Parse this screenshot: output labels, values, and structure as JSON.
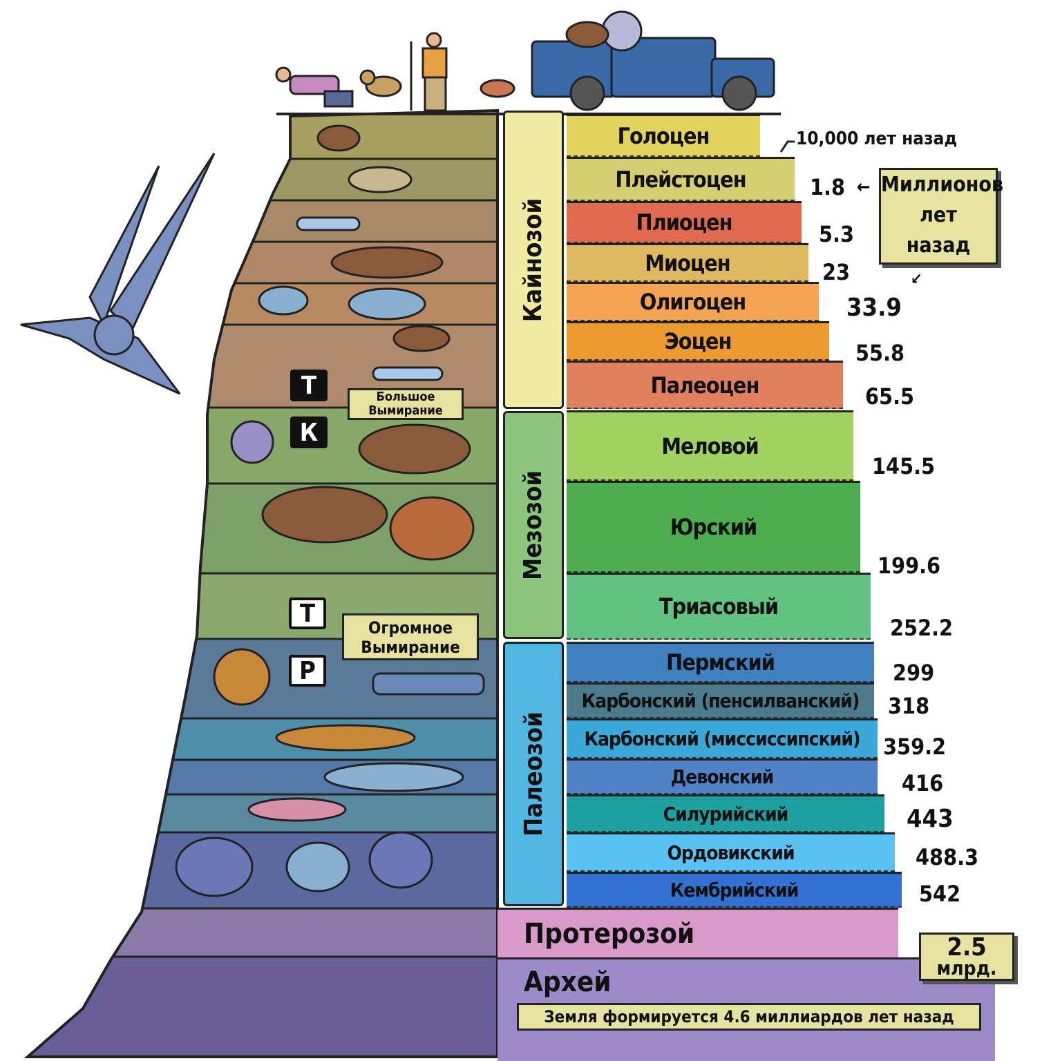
{
  "top_note": "10,000 лет назад",
  "unit_box": {
    "line1": "Миллионов",
    "line2": "лет",
    "line3": "назад"
  },
  "eras": [
    {
      "label": "Кайнозой",
      "color": "#f0eba0"
    },
    {
      "label": "Мезозой",
      "color": "#8cc67e"
    },
    {
      "label": "Палеозой",
      "color": "#52b6e2"
    }
  ],
  "periods": [
    {
      "label": "Голоцен",
      "color": "#e2d35c"
    },
    {
      "label": "Плейстоцен",
      "color": "#d6cf72"
    },
    {
      "label": "Плиоцен",
      "color": "#e06a50"
    },
    {
      "label": "Миоцен",
      "color": "#dfb862"
    },
    {
      "label": "Олигоцен",
      "color": "#f2a452"
    },
    {
      "label": "Эоцен",
      "color": "#eb9b30"
    },
    {
      "label": "Палеоцен",
      "color": "#e0805f"
    },
    {
      "label": "Меловой",
      "color": "#a2d262"
    },
    {
      "label": "Юрский",
      "color": "#4cae4f"
    },
    {
      "label": "Триасовый",
      "color": "#62c282"
    },
    {
      "label": "Пермский",
      "color": "#3f80c0"
    },
    {
      "label": "Карбонский (пенсилванский)",
      "color": "#4b7b8b"
    },
    {
      "label": "Карбонский (миссиссипский)",
      "color": "#3aa8d8"
    },
    {
      "label": "Девонский",
      "color": "#5082c8"
    },
    {
      "label": "Силурийский",
      "color": "#1ea0a0"
    },
    {
      "label": "Ордовикский",
      "color": "#5ac2f2"
    },
    {
      "label": "Кембрийский",
      "color": "#3272d2"
    }
  ],
  "eons": [
    {
      "label": "Протерозой",
      "color": "#d99ac9"
    },
    {
      "label": "Архей",
      "color": "#9b8bc9"
    }
  ],
  "ages": [
    "1.8",
    "5.3",
    "23",
    "33.9",
    "55.8",
    "65.5",
    "145.5",
    "199.6",
    "252.2",
    "299",
    "318",
    "359.2",
    "416",
    "443",
    "488.3",
    "542"
  ],
  "billion_box": {
    "value": "2.5",
    "unit": "млрд."
  },
  "earth_forms": "Земля формируется 4.6 миллиардов лет назад",
  "extinctions": [
    {
      "label_line1": "Большое",
      "label_line2": "Вымирание",
      "marker_top": "Т",
      "marker_bottom": "К"
    },
    {
      "label_line1": "Огромное",
      "label_line2": "Вымирание",
      "marker_top": "Т",
      "marker_bottom": "Р"
    }
  ]
}
